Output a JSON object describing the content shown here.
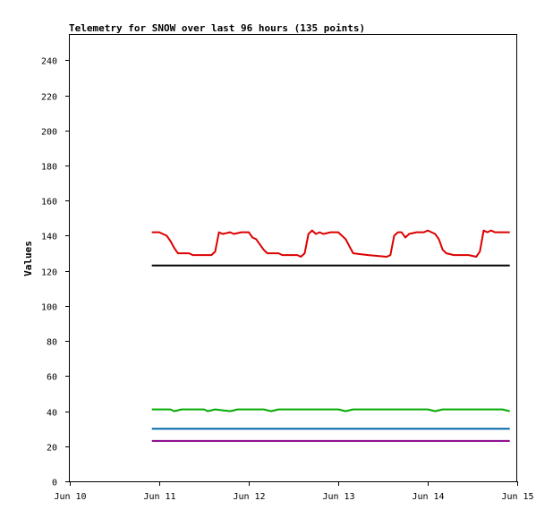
{
  "chart_data": {
    "type": "line",
    "title": "Telemetry for SNOW over last 96 hours (135 points)",
    "ylabel": "Values",
    "xlabel": "",
    "xlim": [
      "Jun 10",
      "Jun 15"
    ],
    "ylim": [
      0,
      255
    ],
    "x_ticks": [
      "Jun 10",
      "Jun 11",
      "Jun 12",
      "Jun 13",
      "Jun 14",
      "Jun 15"
    ],
    "y_ticks": [
      0,
      20,
      40,
      60,
      80,
      100,
      120,
      140,
      160,
      180,
      200,
      220,
      240
    ],
    "grid": false,
    "legend": "none",
    "series": [
      {
        "color": "#dd0000",
        "points": [
          [
            "Jun 10 22:00",
            142
          ],
          [
            "Jun 11 00:00",
            142
          ],
          [
            "Jun 11 02:00",
            140
          ],
          [
            "Jun 11 03:00",
            137
          ],
          [
            "Jun 11 04:00",
            133
          ],
          [
            "Jun 11 05:00",
            130
          ],
          [
            "Jun 11 08:00",
            130
          ],
          [
            "Jun 11 09:00",
            129
          ],
          [
            "Jun 11 14:00",
            129
          ],
          [
            "Jun 11 15:00",
            131
          ],
          [
            "Jun 11 16:00",
            142
          ],
          [
            "Jun 11 17:00",
            141
          ],
          [
            "Jun 11 19:00",
            142
          ],
          [
            "Jun 11 20:00",
            141
          ],
          [
            "Jun 11 22:00",
            142
          ],
          [
            "Jun 12 00:00",
            142
          ],
          [
            "Jun 12 01:00",
            139
          ],
          [
            "Jun 12 02:00",
            138
          ],
          [
            "Jun 12 04:00",
            132
          ],
          [
            "Jun 12 05:00",
            130
          ],
          [
            "Jun 12 08:00",
            130
          ],
          [
            "Jun 12 09:00",
            129
          ],
          [
            "Jun 12 13:00",
            129
          ],
          [
            "Jun 12 14:00",
            128
          ],
          [
            "Jun 12 15:00",
            130
          ],
          [
            "Jun 12 16:00",
            141
          ],
          [
            "Jun 12 17:00",
            143
          ],
          [
            "Jun 12 18:00",
            141
          ],
          [
            "Jun 12 19:00",
            142
          ],
          [
            "Jun 12 20:00",
            141
          ],
          [
            "Jun 12 22:00",
            142
          ],
          [
            "Jun 13 00:00",
            142
          ],
          [
            "Jun 13 02:00",
            138
          ],
          [
            "Jun 13 03:00",
            134
          ],
          [
            "Jun 13 04:00",
            130
          ],
          [
            "Jun 13 08:00",
            129
          ],
          [
            "Jun 13 13:00",
            128
          ],
          [
            "Jun 13 14:00",
            129
          ],
          [
            "Jun 13 15:00",
            140
          ],
          [
            "Jun 13 16:00",
            142
          ],
          [
            "Jun 13 17:00",
            142
          ],
          [
            "Jun 13 18:00",
            139
          ],
          [
            "Jun 13 19:00",
            141
          ],
          [
            "Jun 13 21:00",
            142
          ],
          [
            "Jun 13 23:00",
            142
          ],
          [
            "Jun 14 00:00",
            143
          ],
          [
            "Jun 14 02:00",
            141
          ],
          [
            "Jun 14 03:00",
            138
          ],
          [
            "Jun 14 04:00",
            132
          ],
          [
            "Jun 14 05:00",
            130
          ],
          [
            "Jun 14 07:00",
            129
          ],
          [
            "Jun 14 11:00",
            129
          ],
          [
            "Jun 14 13:00",
            128
          ],
          [
            "Jun 14 14:00",
            131
          ],
          [
            "Jun 14 15:00",
            143
          ],
          [
            "Jun 14 16:00",
            142
          ],
          [
            "Jun 14 17:00",
            143
          ],
          [
            "Jun 14 18:00",
            142
          ],
          [
            "Jun 14 22:00",
            142
          ]
        ]
      },
      {
        "color": "#000000",
        "points": [
          [
            "Jun 10 22:00",
            123
          ],
          [
            "Jun 14 22:00",
            123
          ]
        ]
      },
      {
        "color": "#00aa00",
        "points": [
          [
            "Jun 10 22:00",
            41
          ],
          [
            "Jun 11 03:00",
            41
          ],
          [
            "Jun 11 04:00",
            40
          ],
          [
            "Jun 11 06:00",
            41
          ],
          [
            "Jun 11 12:00",
            41
          ],
          [
            "Jun 11 13:00",
            40
          ],
          [
            "Jun 11 15:00",
            41
          ],
          [
            "Jun 11 19:00",
            40
          ],
          [
            "Jun 11 21:00",
            41
          ],
          [
            "Jun 12 04:00",
            41
          ],
          [
            "Jun 12 06:00",
            40
          ],
          [
            "Jun 12 08:00",
            41
          ],
          [
            "Jun 13 00:00",
            41
          ],
          [
            "Jun 13 02:00",
            40
          ],
          [
            "Jun 13 04:00",
            41
          ],
          [
            "Jun 14 00:00",
            41
          ],
          [
            "Jun 14 02:00",
            40
          ],
          [
            "Jun 14 04:00",
            41
          ],
          [
            "Jun 14 20:00",
            41
          ],
          [
            "Jun 14 22:00",
            40
          ]
        ]
      },
      {
        "color": "#0066aa",
        "points": [
          [
            "Jun 10 22:00",
            30
          ],
          [
            "Jun 14 22:00",
            30
          ]
        ]
      },
      {
        "color": "#880088",
        "points": [
          [
            "Jun 10 22:00",
            23
          ],
          [
            "Jun 14 22:00",
            23
          ]
        ]
      }
    ]
  }
}
